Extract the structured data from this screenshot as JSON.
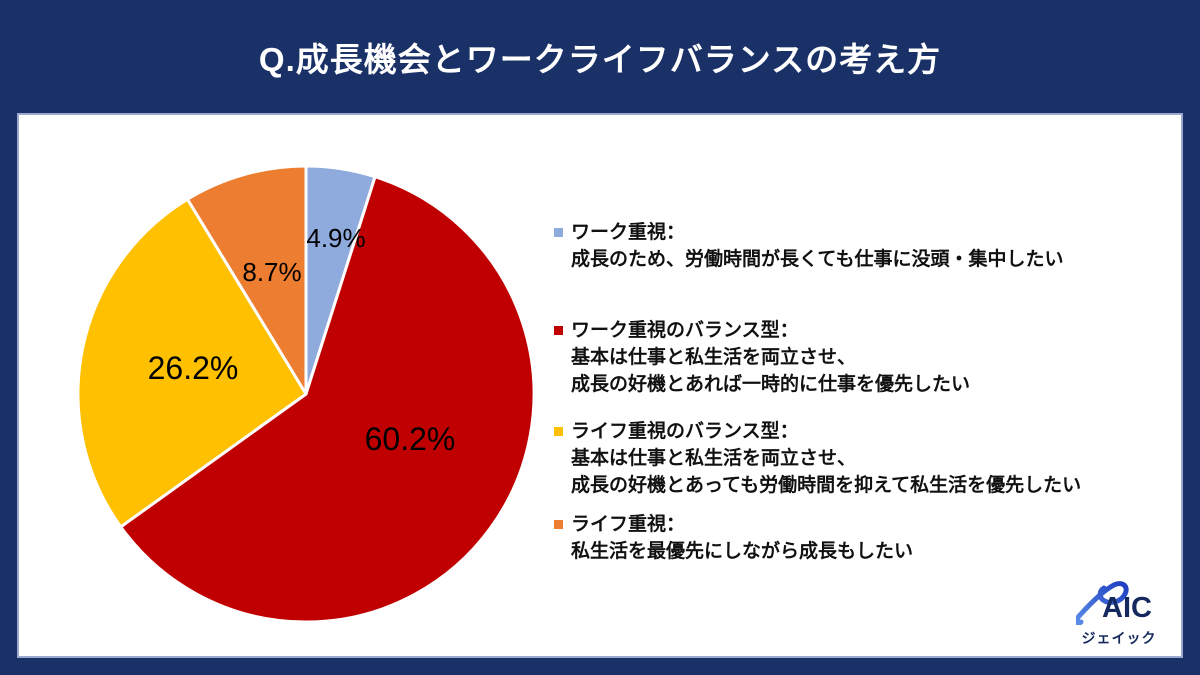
{
  "header": {
    "title": "Q.成長機会とワークライフバランスの考え方"
  },
  "chart_data": {
    "type": "pie",
    "title": "Q.成長機会とワークライフバランスの考え方",
    "start_angle_deg": 0,
    "direction": "clockwise",
    "slices": [
      {
        "label": "ワーク重視",
        "value": 4.9,
        "display": "4.9%",
        "color": "#8FAADC"
      },
      {
        "label": "ワーク重視のバランス型",
        "value": 60.2,
        "display": "60.2%",
        "color": "#C00000"
      },
      {
        "label": "ライフ重視のバランス型",
        "value": 26.2,
        "display": "26.2%",
        "color": "#FFC000"
      },
      {
        "label": "ライフ重視",
        "value": 8.7,
        "display": "8.7%",
        "color": "#ED7D31"
      }
    ],
    "slice_border_color": "#FFFFFF",
    "label_color": "#000000",
    "legend_position": "right"
  },
  "legend": {
    "items": [
      {
        "color": "#8FAADC",
        "title": "ワーク重視：",
        "lines": [
          "成長のため、労働時間が長くても仕事に没頭・集中したい"
        ]
      },
      {
        "color": "#C00000",
        "title": "ワーク重視のバランス型：",
        "lines": [
          "基本は仕事と私生活を両立させ、",
          "成長の好機とあれば一時的に仕事を優先したい"
        ]
      },
      {
        "color": "#FFC000",
        "title": "ライフ重視のバランス型：",
        "lines": [
          "基本は仕事と私生活を両立させ、",
          "成長の好機とあっても労働時間を抑えて私生活を優先したい"
        ]
      },
      {
        "color": "#ED7D31",
        "title": "ライフ重視：",
        "lines": [
          "私生活を最優先にしながら成長もしたい"
        ]
      }
    ]
  },
  "logo": {
    "text": "AIC",
    "subtext": "ジェイック"
  },
  "colors": {
    "background": "#1A3168",
    "panel": "#FFFFFF",
    "panel_border": "#9BA9CE",
    "title_text": "#FFFFFF",
    "label_text": "#000000",
    "logo_navy": "#16295E"
  }
}
